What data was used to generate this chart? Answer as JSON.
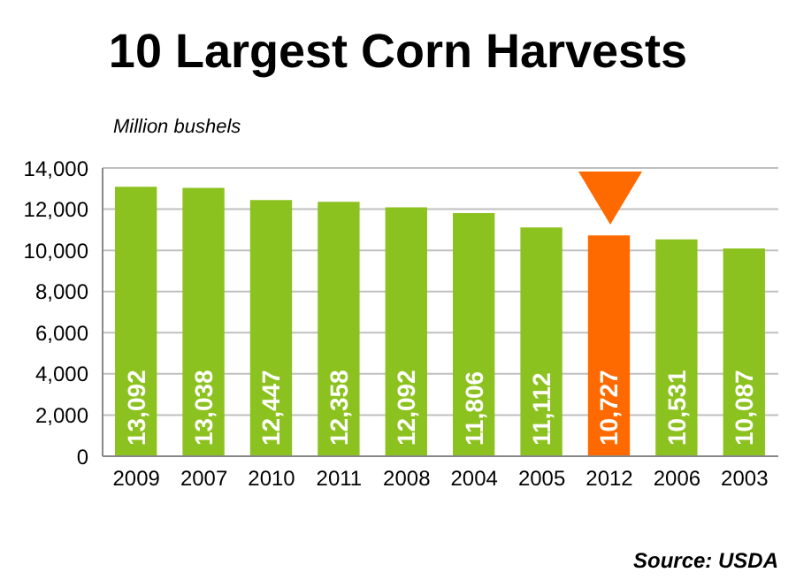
{
  "chart_data": {
    "type": "bar",
    "title": "10 Largest Corn Harvests",
    "ylabel": "Million bushels",
    "categories": [
      "2009",
      "2007",
      "2010",
      "2011",
      "2008",
      "2004",
      "2005",
      "2012",
      "2006",
      "2003"
    ],
    "values": [
      13092,
      13038,
      12447,
      12358,
      12092,
      11806,
      11112,
      10727,
      10531,
      10087
    ],
    "colors": [
      "#8cc21f",
      "#8cc21f",
      "#8cc21f",
      "#8cc21f",
      "#8cc21f",
      "#8cc21f",
      "#8cc21f",
      "#ff6a00",
      "#8cc21f",
      "#8cc21f"
    ],
    "value_labels": [
      "13,092",
      "13,038",
      "12,447",
      "12,358",
      "12,092",
      "11,806",
      "11,112",
      "10,727",
      "10,531",
      "10,087"
    ],
    "ylim": [
      0,
      14000
    ],
    "yticks": [
      {
        "value": 0,
        "label": "0"
      },
      {
        "value": 2000,
        "label": "2,000"
      },
      {
        "value": 4000,
        "label": "4,000"
      },
      {
        "value": 6000,
        "label": "6,000"
      },
      {
        "value": 8000,
        "label": "8,000"
      },
      {
        "value": 10000,
        "label": "10,000"
      },
      {
        "value": 12000,
        "label": "12,000"
      },
      {
        "value": 14000,
        "label": "14,000"
      }
    ],
    "grid": "y",
    "annotations": [
      "Source: USDA"
    ]
  }
}
